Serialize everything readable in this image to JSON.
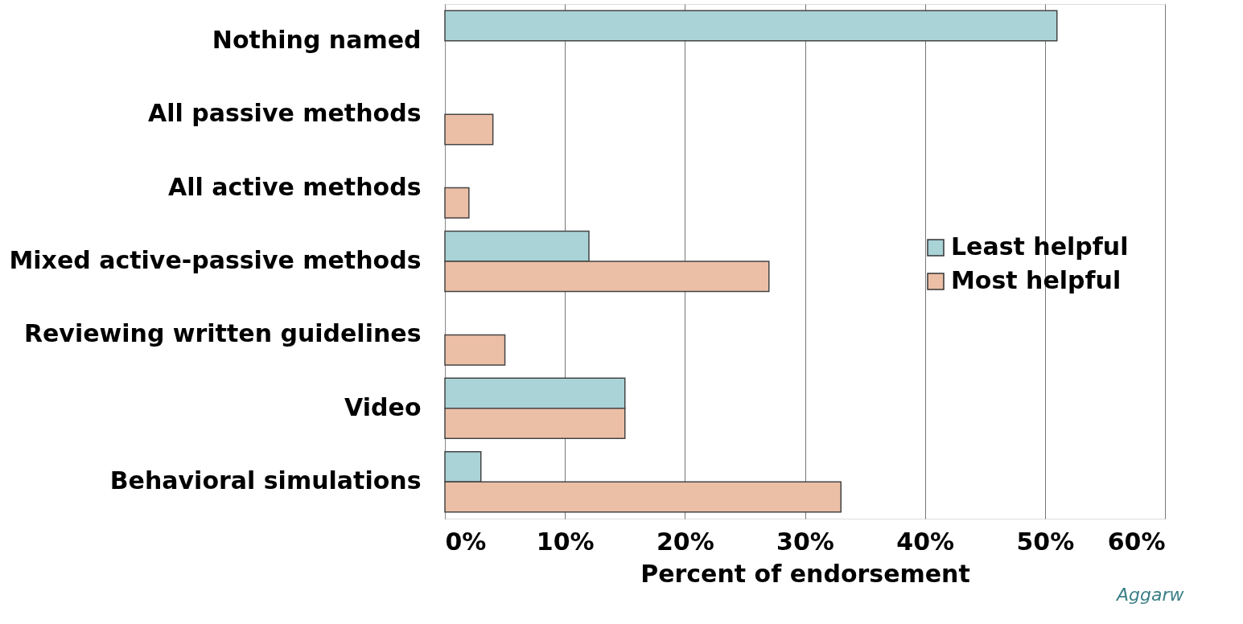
{
  "chart_data": {
    "type": "bar",
    "orientation": "horizontal",
    "categories": [
      "Nothing named",
      "All passive methods",
      "All active methods",
      "Mixed active-passive methods",
      "Reviewing written guidelines",
      "Video ",
      "Behavioral simulations"
    ],
    "series": [
      {
        "name": "Least helpful",
        "color": "#a9d3d6",
        "values": [
          51,
          null,
          null,
          12,
          null,
          15,
          3
        ]
      },
      {
        "name": "Most helpful",
        "color": "#ebbfa6",
        "values": [
          null,
          4,
          2,
          27,
          5,
          15,
          33
        ]
      }
    ],
    "xlabel": "Percent of endorsement",
    "xlim": [
      0,
      60
    ],
    "xticks": [
      {
        "value": 0,
        "label": "0%"
      },
      {
        "value": 10,
        "label": "10%"
      },
      {
        "value": 20,
        "label": "20%"
      },
      {
        "value": 30,
        "label": "30%"
      },
      {
        "value": 40,
        "label": "40%"
      },
      {
        "value": 50,
        "label": "50%"
      },
      {
        "value": 60,
        "label": "60%"
      }
    ],
    "grid": "x",
    "legend": "right",
    "annotations": [
      "Aggarw"
    ]
  }
}
